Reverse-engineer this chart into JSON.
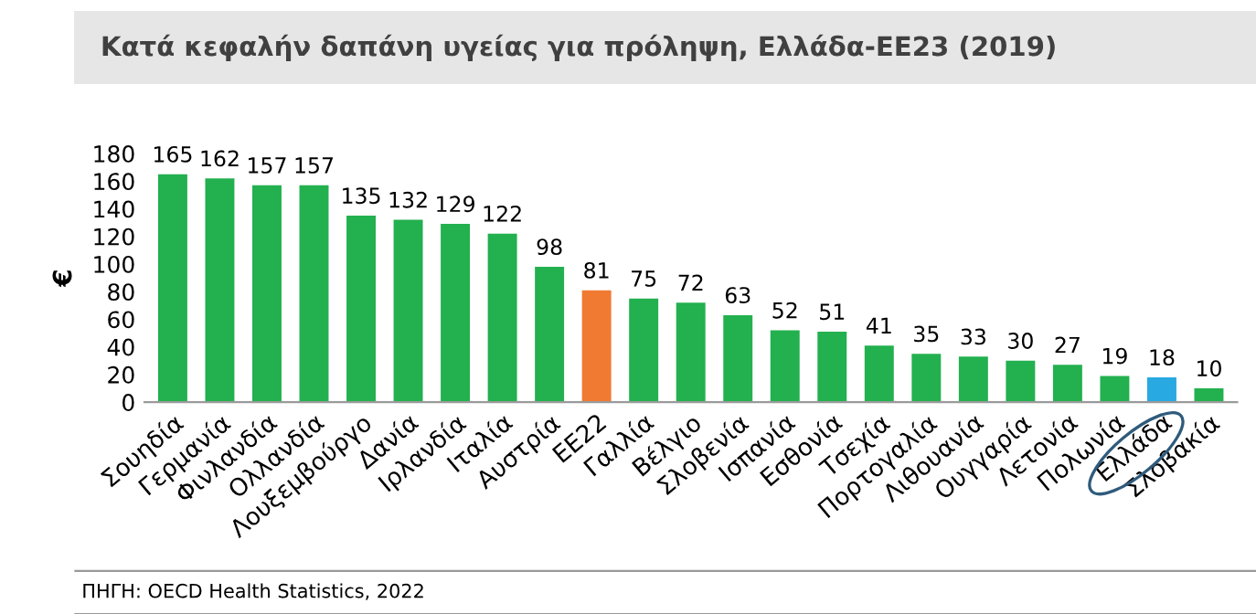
{
  "chart_data": {
    "type": "bar",
    "title": "Κατά κεφαλήν δαπάνη υγείας για πρόληψη, Ελλάδα-ΕΕ23 (2019)",
    "ylabel": "€",
    "categories": [
      "Σουηδία",
      "Γερμανία",
      "Φινλανδία",
      "Ολλανδία",
      "Λουξεμβούργο",
      "Δανία",
      "Ιρλανδία",
      "Ιταλία",
      "Αυστρία",
      "ΕΕ22",
      "Γαλλία",
      "Βέλγιο",
      "Σλοβενία",
      "Ισπανία",
      "Εσθονία",
      "Τσεχία",
      "Πορτογαλία",
      "Λιθουανία",
      "Ουγγαρία",
      "Λετονία",
      "Πολωνία",
      "Ελλάδα",
      "Σλοβακία"
    ],
    "values": [
      165,
      162,
      157,
      157,
      135,
      132,
      129,
      122,
      98,
      81,
      75,
      72,
      63,
      52,
      51,
      41,
      35,
      33,
      30,
      27,
      19,
      18,
      10
    ],
    "colors": [
      "#23b04f",
      "#23b04f",
      "#23b04f",
      "#23b04f",
      "#23b04f",
      "#23b04f",
      "#23b04f",
      "#23b04f",
      "#23b04f",
      "#f07a32",
      "#23b04f",
      "#23b04f",
      "#23b04f",
      "#23b04f",
      "#23b04f",
      "#23b04f",
      "#23b04f",
      "#23b04f",
      "#23b04f",
      "#23b04f",
      "#23b04f",
      "#29a9e1",
      "#23b04f"
    ],
    "ylim": [
      0,
      180
    ],
    "yticks": [
      0,
      20,
      40,
      60,
      80,
      100,
      120,
      140,
      160,
      180
    ],
    "grid": false,
    "legend": false,
    "data_labels": true,
    "annotations": [
      "ΠΗΓΗ: OECD Health Statistics, 2022"
    ]
  }
}
